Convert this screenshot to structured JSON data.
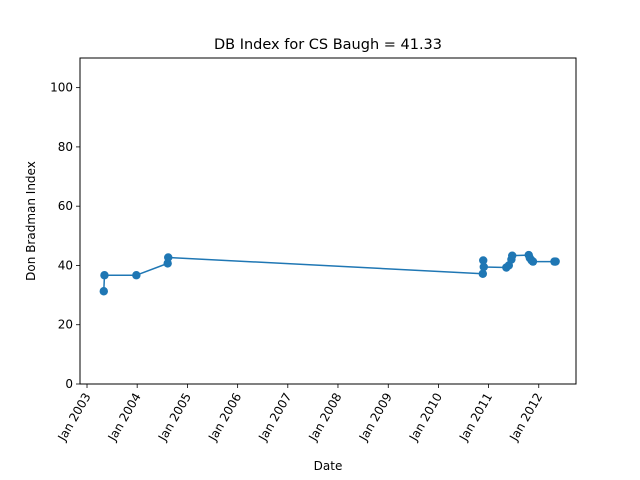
{
  "chart_data": {
    "type": "line",
    "title": "DB Index for CS Baugh = 41.33",
    "xlabel": "Date",
    "ylabel": "Don Bradman Index",
    "xlim": [
      "2002-11-11",
      "2012-09-28"
    ],
    "ylim": [
      0,
      110
    ],
    "x_ticks": [
      {
        "date": "2003-01-01",
        "label": "Jan 2003"
      },
      {
        "date": "2004-01-01",
        "label": "Jan 2004"
      },
      {
        "date": "2005-01-01",
        "label": "Jan 2005"
      },
      {
        "date": "2006-01-01",
        "label": "Jan 2006"
      },
      {
        "date": "2007-01-01",
        "label": "Jan 2007"
      },
      {
        "date": "2008-01-01",
        "label": "Jan 2008"
      },
      {
        "date": "2009-01-01",
        "label": "Jan 2009"
      },
      {
        "date": "2010-01-01",
        "label": "Jan 2010"
      },
      {
        "date": "2011-01-01",
        "label": "Jan 2011"
      },
      {
        "date": "2012-01-01",
        "label": "Jan 2012"
      }
    ],
    "y_ticks": [
      0,
      20,
      40,
      60,
      80,
      100
    ],
    "grid": false,
    "color": "#1f77b4",
    "series": [
      {
        "points": [
          {
            "x": "2003-05-03",
            "y": 31.3
          },
          {
            "x": "2003-05-08",
            "y": 36.7
          },
          {
            "x": "2003-12-26",
            "y": 36.7
          },
          {
            "x": "2004-08-10",
            "y": 40.7
          },
          {
            "x": "2004-08-14",
            "y": 42.7
          },
          {
            "x": "2010-11-20",
            "y": 37.2
          },
          {
            "x": "2010-11-23",
            "y": 41.7
          },
          {
            "x": "2010-11-27",
            "y": 39.5
          },
          {
            "x": "2011-05-10",
            "y": 39.3
          },
          {
            "x": "2011-05-28",
            "y": 40.0
          },
          {
            "x": "2011-06-16",
            "y": 42.0
          },
          {
            "x": "2011-06-22",
            "y": 43.3
          },
          {
            "x": "2011-10-20",
            "y": 43.5
          },
          {
            "x": "2011-10-28",
            "y": 42.5
          },
          {
            "x": "2011-11-10",
            "y": 41.7
          },
          {
            "x": "2011-11-20",
            "y": 41.3
          },
          {
            "x": "2012-04-24",
            "y": 41.3
          },
          {
            "x": "2012-05-03",
            "y": 41.33
          }
        ]
      }
    ]
  }
}
